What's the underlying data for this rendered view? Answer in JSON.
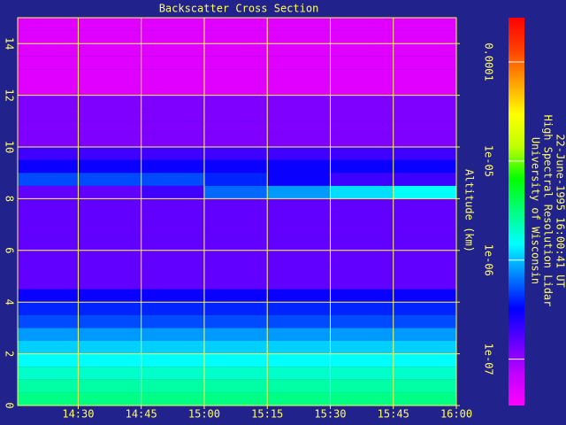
{
  "chart_data": {
    "type": "heatmap",
    "title": "Backscatter Cross Section",
    "y_label": "Altitude (km)",
    "annotations": [
      "University of Wisconsin",
      "High Spectral Resolution Lidar",
      "22-June-1995 16:00:41 UT"
    ],
    "x_bins": [
      855.6,
      870,
      885,
      900,
      915,
      930,
      945,
      960
    ],
    "y_bins": [
      0,
      0.5,
      1,
      1.5,
      2,
      2.5,
      3,
      3.5,
      4,
      4.5,
      5,
      5.5,
      6,
      6.5,
      7,
      7.5,
      8,
      8.5,
      9,
      9.5,
      10,
      10.5,
      11,
      11.5,
      12,
      12.5,
      13,
      13.5,
      14,
      14.5,
      15
    ],
    "values": [
      [
        3e-06,
        3e-06,
        3e-06,
        3e-06,
        3e-06,
        3e-06,
        3e-06
      ],
      [
        2.5e-06,
        2.5e-06,
        2.5e-06,
        2.5e-06,
        2.5e-06,
        2.5e-06,
        2.5e-06
      ],
      [
        2e-06,
        2e-06,
        2e-06,
        2e-06,
        2e-06,
        2e-06,
        2e-06
      ],
      [
        1.5e-06,
        1.5e-06,
        1.5e-06,
        1.5e-06,
        1.5e-06,
        1.5e-06,
        1.5e-06
      ],
      [
        1.1e-06,
        1.1e-06,
        1.1e-06,
        1.1e-06,
        1.1e-06,
        1.1e-06,
        1.1e-06
      ],
      [
        8e-07,
        8e-07,
        8e-07,
        8e-07,
        8e-07,
        8e-07,
        8e-07
      ],
      [
        5e-07,
        5e-07,
        5e-07,
        5e-07,
        5e-07,
        5e-07,
        5e-07
      ],
      [
        4e-07,
        4e-07,
        4e-07,
        4e-07,
        4e-07,
        4e-07,
        4e-07
      ],
      [
        3e-07,
        3e-07,
        3e-07,
        3e-07,
        3e-07,
        3e-07,
        3e-07
      ],
      [
        1.5e-07,
        1.5e-07,
        1.5e-07,
        1.5e-07,
        1.5e-07,
        1.5e-07,
        1.5e-07
      ],
      [
        1.5e-07,
        1.5e-07,
        1.5e-07,
        1.5e-07,
        1.5e-07,
        1.5e-07,
        1.5e-07
      ],
      [
        1.5e-07,
        1.5e-07,
        1.5e-07,
        1.5e-07,
        1.5e-07,
        1.5e-07,
        1.5e-07
      ],
      [
        1.5e-07,
        1.5e-07,
        1.5e-07,
        1.5e-07,
        1.5e-07,
        1.5e-07,
        1.5e-07
      ],
      [
        1.5e-07,
        1.5e-07,
        1.5e-07,
        1.5e-07,
        1.5e-07,
        1.5e-07,
        1.5e-07
      ],
      [
        1.5e-07,
        1.5e-07,
        1.5e-07,
        1.5e-07,
        1.5e-07,
        1.5e-07,
        1.5e-07
      ],
      [
        1.5e-07,
        1.5e-07,
        1.5e-07,
        1.5e-07,
        1.5e-07,
        1.5e-07,
        1.5e-07
      ],
      [
        1.5e-07,
        1.5e-07,
        2e-07,
        6e-07,
        8e-07,
        1.2e-06,
        1.5e-06
      ],
      [
        5e-07,
        5e-07,
        5e-07,
        4e-07,
        3e-07,
        2e-07,
        2e-07
      ],
      [
        3e-07,
        3e-07,
        3e-07,
        3e-07,
        3e-07,
        3e-07,
        3e-07
      ],
      [
        2e-07,
        2e-07,
        2e-07,
        2e-07,
        2e-07,
        2e-07,
        2e-07
      ],
      [
        1.2e-07,
        1.2e-07,
        1.2e-07,
        1.2e-07,
        1.2e-07,
        1.2e-07,
        1.2e-07
      ],
      [
        1.2e-07,
        1.2e-07,
        1.2e-07,
        1.2e-07,
        1.2e-07,
        1.2e-07,
        1.2e-07
      ],
      [
        1.2e-07,
        1.2e-07,
        1.2e-07,
        1.2e-07,
        1.2e-07,
        1.2e-07,
        1.2e-07
      ],
      [
        1.2e-07,
        1.2e-07,
        1.2e-07,
        1.2e-07,
        1.2e-07,
        1.2e-07,
        1.2e-07
      ],
      [
        5e-08,
        5e-08,
        5e-08,
        5e-08,
        5e-08,
        5e-08,
        5e-08
      ],
      [
        5e-08,
        5e-08,
        5e-08,
        5e-08,
        5e-08,
        5e-08,
        5e-08
      ],
      [
        5e-08,
        5e-08,
        5e-08,
        5e-08,
        5e-08,
        5e-08,
        5e-08
      ],
      [
        5e-08,
        5e-08,
        5e-08,
        5e-08,
        5e-08,
        5e-08,
        5e-08
      ],
      [
        5e-08,
        5e-08,
        5e-08,
        5e-08,
        5e-08,
        5e-08,
        5e-08
      ],
      [
        5e-08,
        5e-08,
        5e-08,
        5e-08,
        5e-08,
        5e-08,
        5e-08
      ]
    ],
    "xlim": [
      855.6,
      960
    ],
    "xticks": [
      {
        "value": 870,
        "label": "14:30"
      },
      {
        "value": 885,
        "label": "14:45"
      },
      {
        "value": 900,
        "label": "15:00"
      },
      {
        "value": 915,
        "label": "15:15"
      },
      {
        "value": 930,
        "label": "15:30"
      },
      {
        "value": 945,
        "label": "15:45"
      },
      {
        "value": 960,
        "label": "16:00"
      }
    ],
    "ylim": [
      0,
      15
    ],
    "yticks": [
      0,
      2,
      4,
      6,
      8,
      10,
      12,
      14
    ],
    "clim": [
      3.4e-08,
      0.00028
    ],
    "color_scale": "log",
    "cticks": [
      0.0001,
      {
        "value": 1e-05,
        "label": "1e-05"
      },
      {
        "value": 1e-06,
        "label": "1e-06"
      },
      {
        "value": 1e-07,
        "label": "1e-07"
      }
    ],
    "colormap": [
      "#ff00ff",
      "#c000ff",
      "#6000ff",
      "#0000ff",
      "#0080ff",
      "#00ffff",
      "#00ff80",
      "#00ff00",
      "#c0ff00",
      "#ffff00",
      "#ffa000",
      "#ff4000",
      "#ff0000"
    ],
    "grid": true,
    "grid_color": "#ffff55",
    "text_color": "#ffff66",
    "background": "#22228c"
  }
}
